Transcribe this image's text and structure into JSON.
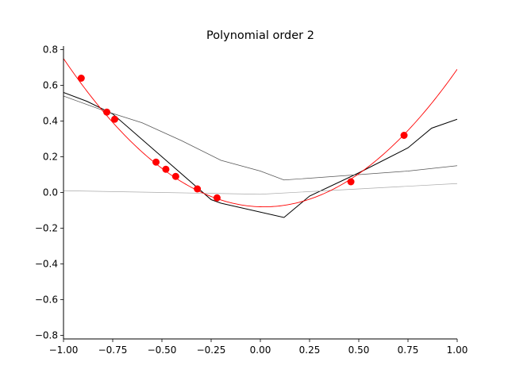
{
  "chart_data": {
    "type": "line",
    "title": "Polynomial order 2",
    "xlabel": "",
    "ylabel": "",
    "xlim": [
      -1.0,
      1.0
    ],
    "ylim": [
      -0.82,
      0.82
    ],
    "x_ticks": [
      -1.0,
      -0.75,
      -0.5,
      -0.25,
      0.0,
      0.25,
      0.5,
      0.75,
      1.0
    ],
    "x_tick_labels": [
      "−1.00",
      "−0.75",
      "−0.50",
      "−0.25",
      "0.00",
      "0.25",
      "0.50",
      "0.75",
      "1.00"
    ],
    "y_ticks": [
      -0.8,
      -0.6,
      -0.4,
      -0.2,
      0.0,
      0.2,
      0.4,
      0.6,
      0.8
    ],
    "y_tick_labels": [
      "−0.8",
      "−0.6",
      "−0.4",
      "−0.2",
      "0.0",
      "0.2",
      "0.4",
      "0.6",
      "0.8"
    ],
    "grid": false,
    "points": {
      "color": "#ff0000",
      "x": [
        -0.91,
        -0.78,
        -0.74,
        -0.53,
        -0.48,
        -0.43,
        -0.32,
        -0.22,
        0.46,
        0.73
      ],
      "y": [
        0.64,
        0.45,
        0.41,
        0.17,
        0.13,
        0.09,
        0.02,
        -0.03,
        0.06,
        0.32
      ]
    },
    "curve": {
      "color": "#ff0000",
      "coefficients": [
        -0.08,
        -0.03,
        0.8
      ]
    },
    "series": [
      {
        "color": "#000000",
        "width": 1.0,
        "x": [
          -1.0,
          -0.88,
          -0.75,
          -0.5,
          -0.25,
          -0.2,
          0.12,
          0.25,
          0.5,
          0.75,
          0.87,
          1.0
        ],
        "y": [
          0.56,
          0.51,
          0.44,
          0.2,
          -0.04,
          -0.06,
          -0.14,
          -0.02,
          0.11,
          0.25,
          0.36,
          0.41
        ]
      },
      {
        "color": "#555555",
        "width": 0.7,
        "x": [
          -1.0,
          -0.8,
          -0.6,
          -0.4,
          -0.2,
          0.0,
          0.12,
          0.25,
          0.5,
          0.75,
          1.0
        ],
        "y": [
          0.54,
          0.46,
          0.39,
          0.29,
          0.18,
          0.12,
          0.07,
          0.08,
          0.1,
          0.12,
          0.15
        ]
      },
      {
        "color": "#aaaaaa",
        "width": 0.7,
        "x": [
          -1.0,
          -0.5,
          0.0,
          0.5,
          1.0
        ],
        "y": [
          0.01,
          0.0,
          -0.01,
          0.02,
          0.05
        ]
      }
    ]
  }
}
